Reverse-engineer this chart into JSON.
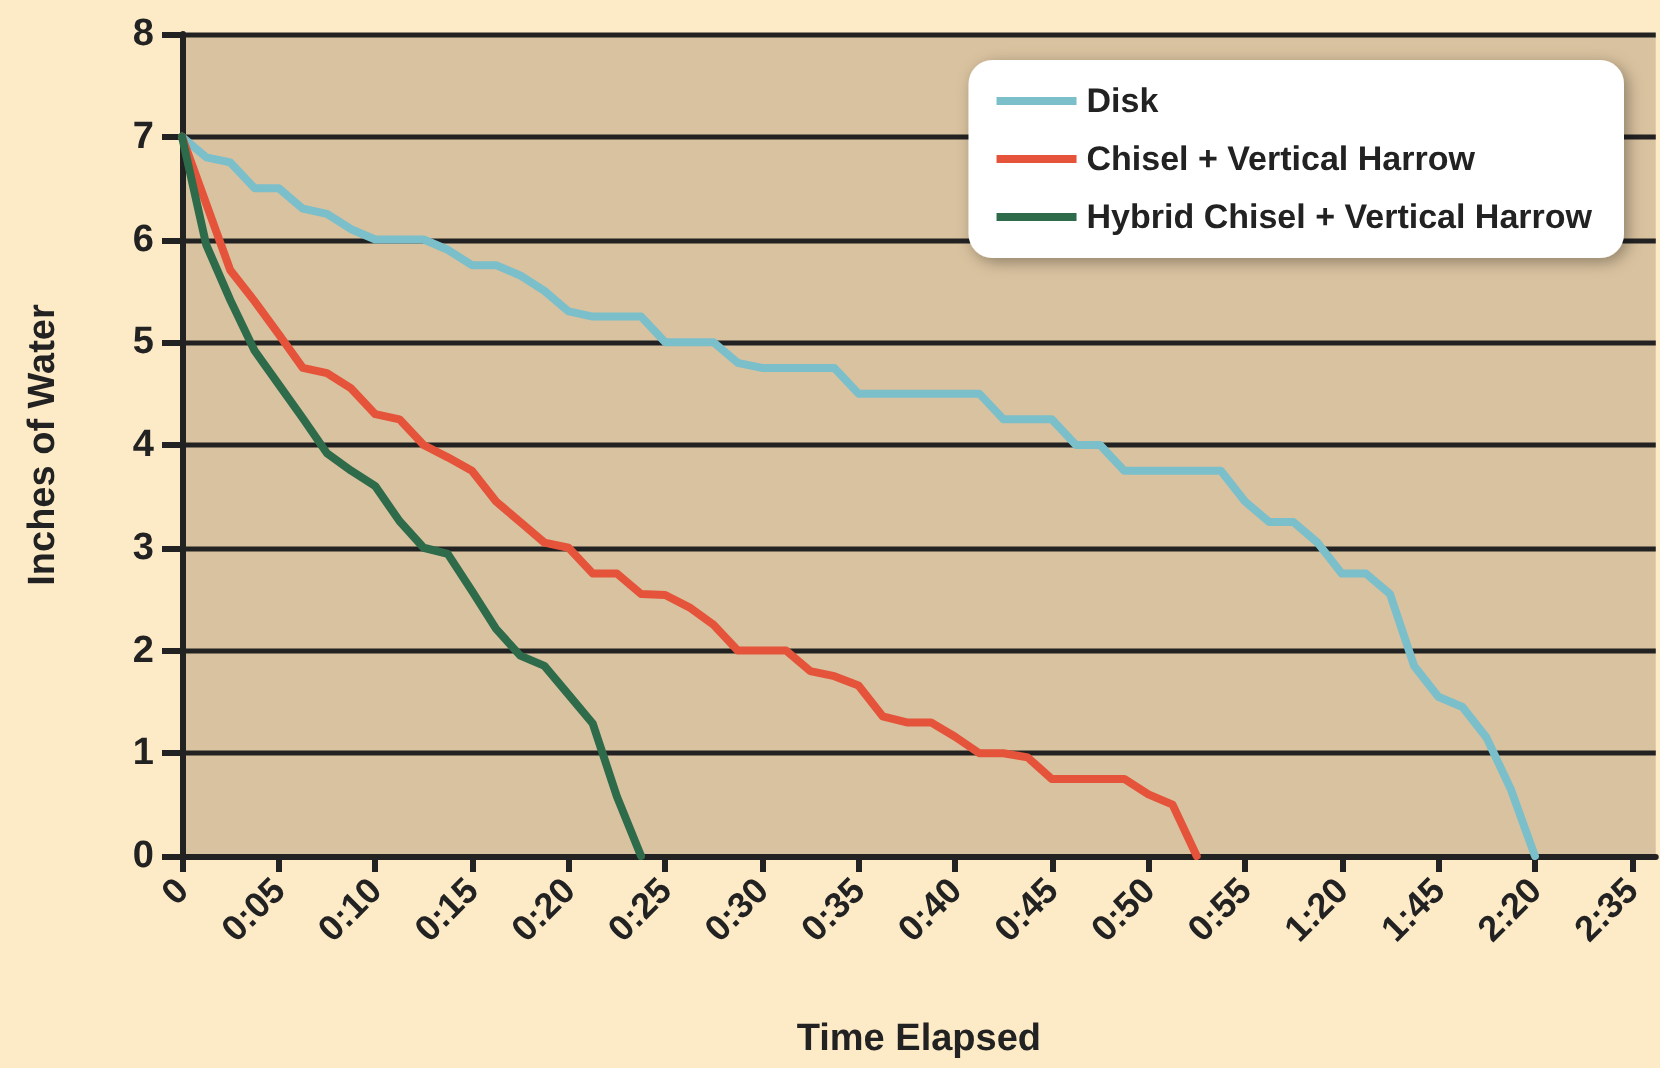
{
  "chart_data": {
    "type": "line",
    "xlabel": "Time Elapsed",
    "ylabel": "Inches of Water",
    "categories": [
      "0",
      null,
      null,
      null,
      "0:05",
      null,
      null,
      null,
      "0:10",
      null,
      null,
      null,
      "0:15",
      null,
      null,
      null,
      "0:20",
      null,
      null,
      null,
      "0:25",
      null,
      null,
      null,
      "0:30",
      null,
      null,
      null,
      "0:35",
      null,
      null,
      null,
      "0:40",
      null,
      null,
      null,
      "0:45",
      null,
      null,
      null,
      "0:50",
      null,
      null,
      null,
      "0:55",
      null,
      null,
      null,
      "1:20",
      null,
      null,
      null,
      "1:45",
      null,
      null,
      null,
      "2:20",
      null,
      null,
      null,
      "2:35",
      null
    ],
    "ylim": [
      0,
      8
    ],
    "yticks": [
      0,
      1,
      2,
      3,
      4,
      5,
      6,
      7,
      8
    ],
    "grid": "y",
    "legend": "top right",
    "marker": "none",
    "line_style": "solid",
    "series": [
      {
        "name": "Disk",
        "color": "#7bbfcb",
        "values": [
          7,
          6.8,
          6.75,
          6.5,
          6.5,
          6.3,
          6.25,
          6.1,
          6,
          6,
          6,
          5.9,
          5.75,
          5.75,
          5.65,
          5.5,
          5.3,
          5.25,
          5.25,
          5.25,
          5,
          5,
          5,
          4.8,
          4.75,
          4.75,
          4.75,
          4.75,
          4.5,
          4.5,
          4.5,
          4.5,
          4.5,
          4.5,
          4.25,
          4.25,
          4.25,
          4,
          4,
          3.75,
          3.75,
          3.75,
          3.75,
          3.75,
          3.45,
          3.25,
          3.25,
          3.05,
          2.75,
          2.75,
          2.55,
          1.85,
          1.55,
          1.45,
          1.15,
          0.65,
          0,
          null,
          null,
          null,
          null,
          null
        ]
      },
      {
        "name": "Chisel + Vertical Harrow",
        "color": "#e4533a",
        "values": [
          7,
          6.35,
          5.7,
          5.4,
          5.08,
          4.75,
          4.7,
          4.55,
          4.3,
          4.25,
          4,
          3.88,
          3.75,
          3.45,
          3.25,
          3.05,
          3,
          2.75,
          2.75,
          2.55,
          2.54,
          2.42,
          2.25,
          2,
          2,
          2,
          1.8,
          1.75,
          1.66,
          1.36,
          1.3,
          1.3,
          1.16,
          1,
          1,
          0.96,
          0.75,
          0.75,
          0.75,
          0.75,
          0.6,
          0.5,
          0,
          null,
          null,
          null,
          null,
          null,
          null,
          null,
          null,
          null,
          null,
          null,
          null,
          null,
          null,
          null,
          null,
          null,
          null,
          null
        ]
      },
      {
        "name": "Hybrid Chisel + Vertical Harrow",
        "color": "#2e6b4a",
        "values": [
          7,
          5.95,
          5.41,
          4.92,
          4.59,
          4.26,
          3.92,
          3.75,
          3.6,
          3.26,
          3,
          2.94,
          2.58,
          2.21,
          1.95,
          1.85,
          1.57,
          1.29,
          0.58,
          0,
          null,
          null,
          null,
          null,
          null,
          null,
          null,
          null,
          null,
          null,
          null,
          null,
          null,
          null,
          null,
          null,
          null,
          null,
          null,
          null,
          null,
          null,
          null,
          null,
          null,
          null,
          null,
          null,
          null,
          null,
          null,
          null,
          null,
          null,
          null,
          null,
          null,
          null,
          null,
          null,
          null,
          null
        ]
      }
    ]
  }
}
